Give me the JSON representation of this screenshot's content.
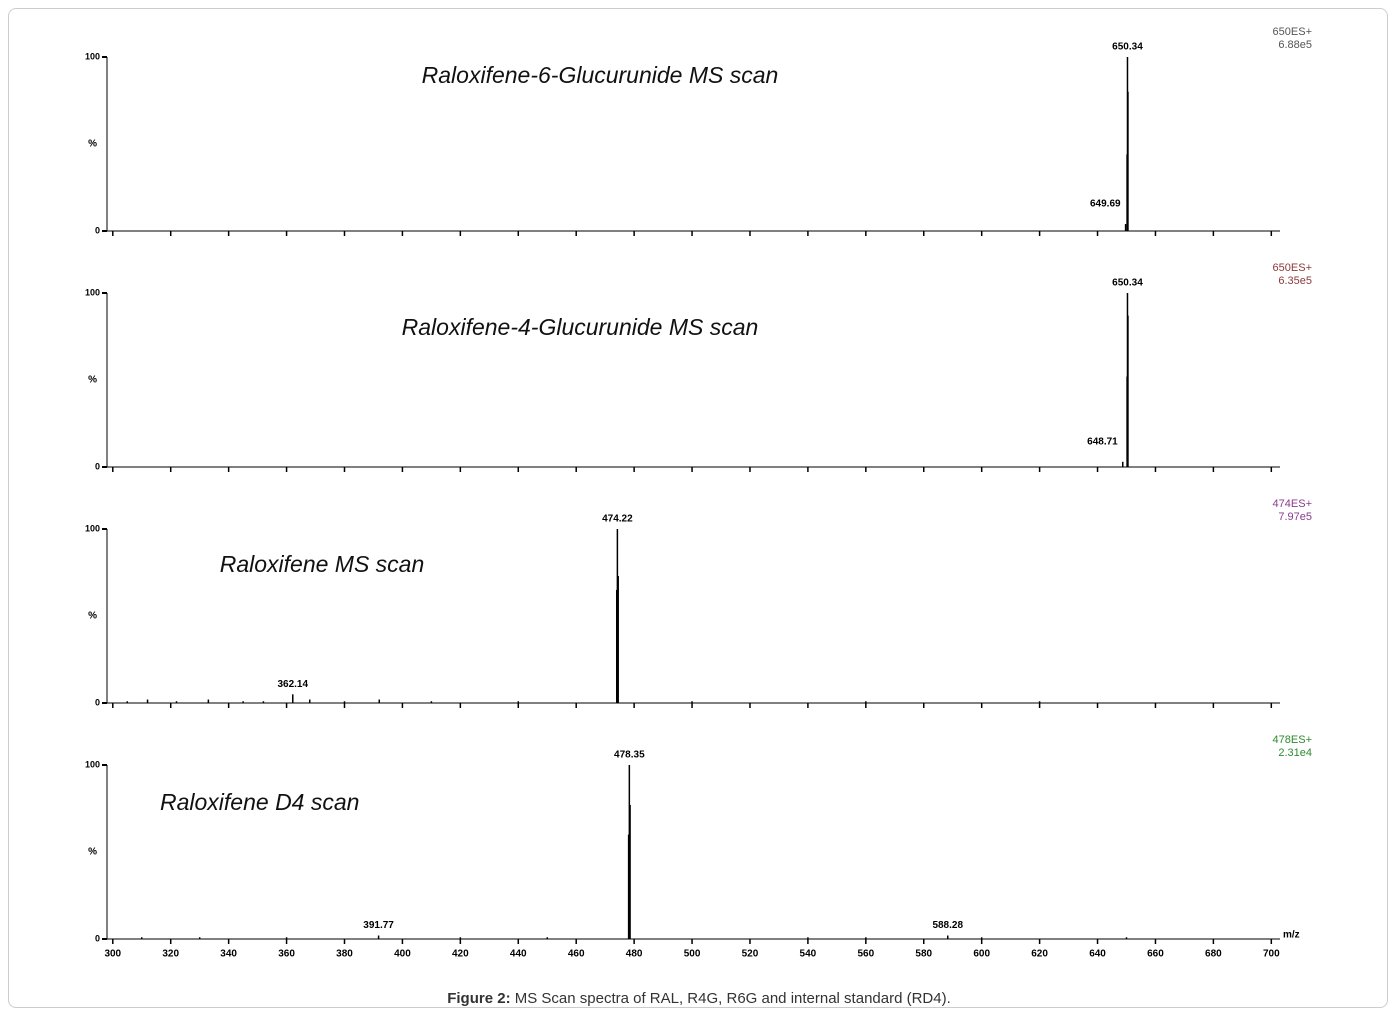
{
  "chart_data": [
    {
      "type": "spectrum",
      "title": "Raloxifene-6-Glucurunide MS scan",
      "channel": "650ES+",
      "intensity": "6.88e5",
      "label_color": "#555555",
      "color": "#000000",
      "x": [
        649.69,
        650.2,
        650.34,
        650.5
      ],
      "values": [
        4,
        44,
        100,
        80
      ],
      "peak_labels": [
        {
          "value": 650.34,
          "label": "650.34"
        },
        {
          "value": 649.69,
          "label": "649.69"
        }
      ],
      "xlim": [
        298,
        703
      ],
      "ylim": [
        0,
        100
      ],
      "xticks": [
        300,
        320,
        340,
        360,
        380,
        400,
        420,
        440,
        460,
        480,
        500,
        520,
        540,
        560,
        580,
        600,
        620,
        640,
        660,
        680,
        700
      ],
      "yticks": [
        0,
        100
      ],
      "ylabel": "%",
      "xtick_labels": false
    },
    {
      "type": "spectrum",
      "title": "Raloxifene-4-Glucurunide MS scan",
      "channel": "650ES+",
      "intensity": "6.35e5",
      "label_color": "#8b3a3a",
      "color": "#000000",
      "x": [
        648.71,
        650.2,
        650.34,
        650.5
      ],
      "values": [
        3,
        52,
        100,
        87
      ],
      "peak_labels": [
        {
          "value": 650.34,
          "label": "650.34"
        },
        {
          "value": 648.71,
          "label": "648.71"
        }
      ],
      "xlim": [
        298,
        703
      ],
      "ylim": [
        0,
        100
      ],
      "xticks": [
        300,
        320,
        340,
        360,
        380,
        400,
        420,
        440,
        460,
        480,
        500,
        520,
        540,
        560,
        580,
        600,
        620,
        640,
        660,
        680,
        700
      ],
      "yticks": [
        0,
        100
      ],
      "ylabel": "%",
      "xtick_labels": false
    },
    {
      "type": "spectrum",
      "title": "Raloxifene MS scan",
      "channel": "474ES+",
      "intensity": "7.97e5",
      "label_color": "#8b3a8b",
      "color": "#000000",
      "x": [
        305,
        312,
        322,
        333,
        345,
        352,
        362.14,
        368,
        380,
        392,
        410,
        440,
        474.0,
        474.22,
        474.5,
        500,
        560,
        620
      ],
      "values": [
        1,
        2,
        1,
        2,
        1,
        1,
        5,
        2,
        1,
        2,
        1,
        1,
        65,
        100,
        73,
        1,
        1,
        1
      ],
      "peak_labels": [
        {
          "value": 474.22,
          "label": "474.22"
        },
        {
          "value": 362.14,
          "label": "362.14"
        }
      ],
      "xlim": [
        298,
        703
      ],
      "ylim": [
        0,
        100
      ],
      "xticks": [
        300,
        320,
        340,
        360,
        380,
        400,
        420,
        440,
        460,
        480,
        500,
        520,
        540,
        560,
        580,
        600,
        620,
        640,
        660,
        680,
        700
      ],
      "yticks": [
        0,
        100
      ],
      "ylabel": "%",
      "xtick_labels": false
    },
    {
      "type": "spectrum",
      "title": "Raloxifene D4 scan",
      "channel": "478ES+",
      "intensity": "2.31e4",
      "label_color": "#2e8b2e",
      "color": "#000000",
      "x": [
        310,
        330,
        360,
        391.77,
        420,
        450,
        478.1,
        478.35,
        478.6,
        540,
        560,
        588.28,
        600,
        650
      ],
      "values": [
        1,
        1,
        1,
        2,
        1,
        1,
        60,
        100,
        77,
        1,
        1,
        2,
        1,
        1
      ],
      "peak_labels": [
        {
          "value": 478.35,
          "label": "478.35"
        },
        {
          "value": 391.77,
          "label": "391.77"
        },
        {
          "value": 588.28,
          "label": "588.28"
        }
      ],
      "xlim": [
        298,
        703
      ],
      "ylim": [
        0,
        100
      ],
      "xticks": [
        300,
        320,
        340,
        360,
        380,
        400,
        420,
        440,
        460,
        480,
        500,
        520,
        540,
        560,
        580,
        600,
        620,
        640,
        660,
        680,
        700
      ],
      "yticks": [
        0,
        100
      ],
      "ylabel": "%",
      "xtick_labels": true,
      "xlabel": "m/z"
    }
  ],
  "caption": {
    "label": "Figure 2:",
    "text": "MS Scan spectra of RAL, R4G, R6G and internal standard (RD4)."
  }
}
